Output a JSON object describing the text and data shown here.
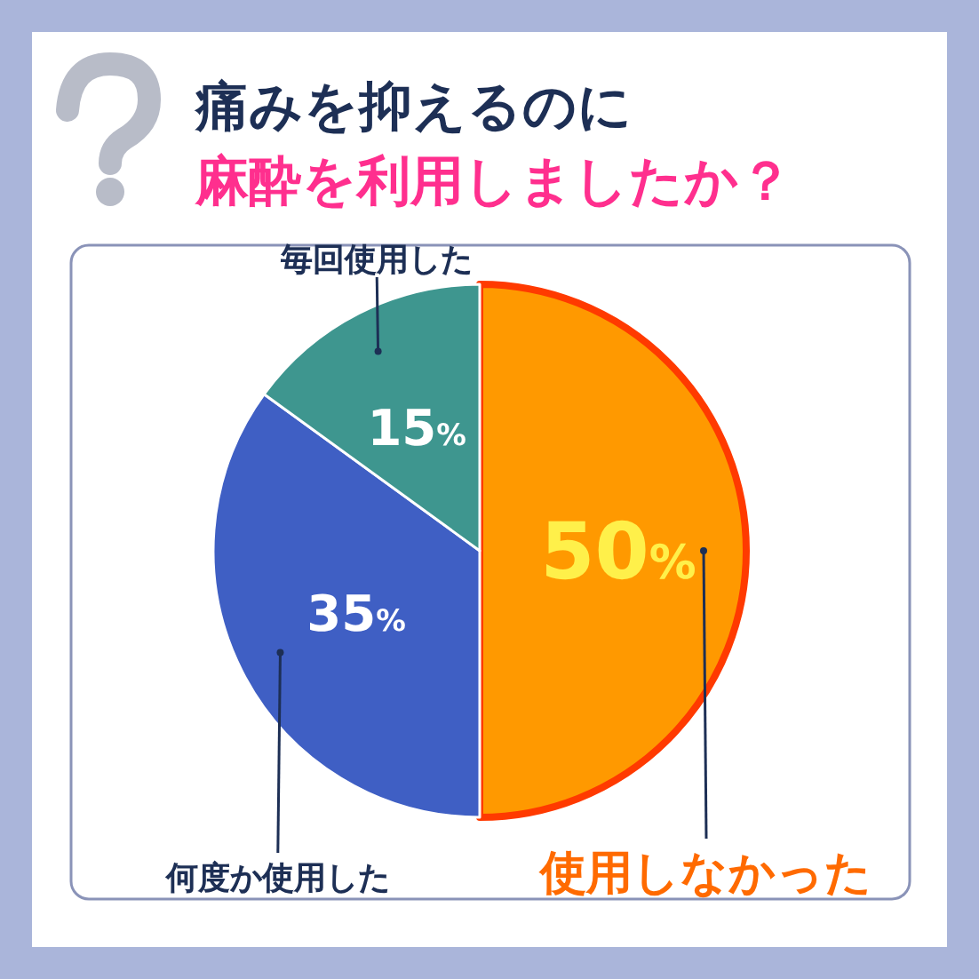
{
  "chart_data": {
    "type": "pie",
    "title": "痛みを抑えるのに",
    "subtitle": "麻酔を利用しましたか？",
    "categories": [
      "使用しなかった",
      "何度か使用した",
      "毎回使用した"
    ],
    "values": [
      50,
      35,
      15
    ],
    "colors": [
      "#ff9900",
      "#3f5fc4",
      "#3e968f"
    ],
    "value_labels": [
      "50%",
      "35%",
      "15%"
    ]
  }
}
